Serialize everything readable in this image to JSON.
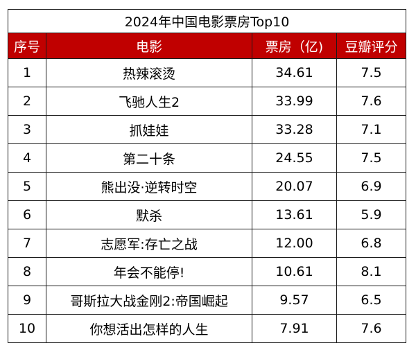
{
  "table": {
    "title": "2024年中国电影票房Top10",
    "headers": {
      "rank": "序号",
      "movie": "电影",
      "box_office": "票房（亿)",
      "score": "豆瓣评分"
    },
    "rows": [
      {
        "rank": "1",
        "movie": "热辣滚烫",
        "box_office": "34.61",
        "score": "7.5"
      },
      {
        "rank": "2",
        "movie": "飞驰人生2",
        "box_office": "33.99",
        "score": "7.6"
      },
      {
        "rank": "3",
        "movie": "抓娃娃",
        "box_office": "33.28",
        "score": "7.1"
      },
      {
        "rank": "4",
        "movie": "第二十条",
        "box_office": "24.55",
        "score": "7.5"
      },
      {
        "rank": "5",
        "movie": "熊出没·逆转时空",
        "box_office": "20.07",
        "score": "6.9"
      },
      {
        "rank": "6",
        "movie": "默杀",
        "box_office": "13.61",
        "score": "5.9"
      },
      {
        "rank": "7",
        "movie": "志愿军:存亡之战",
        "box_office": "12.00",
        "score": "6.8"
      },
      {
        "rank": "8",
        "movie": "年会不能停!",
        "box_office": "10.61",
        "score": "8.1"
      },
      {
        "rank": "9",
        "movie": "哥斯拉大战金刚2:帝国崛起",
        "box_office": "9.57",
        "score": "6.5"
      },
      {
        "rank": "10",
        "movie": "你想活出怎样的人生",
        "box_office": "7.91",
        "score": "7.6"
      }
    ]
  },
  "colors": {
    "header_background": "#c00000",
    "header_text": "#ffffff",
    "border": "#1a1a1a",
    "body_text": "#000000"
  }
}
